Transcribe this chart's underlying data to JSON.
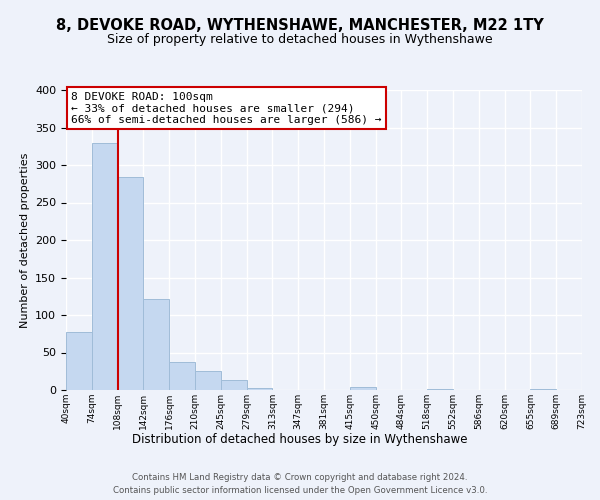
{
  "title": "8, DEVOKE ROAD, WYTHENSHAWE, MANCHESTER, M22 1TY",
  "subtitle": "Size of property relative to detached houses in Wythenshawe",
  "xlabel": "Distribution of detached houses by size in Wythenshawe",
  "ylabel": "Number of detached properties",
  "bar_values": [
    77,
    330,
    284,
    122,
    37,
    25,
    14,
    3,
    0,
    0,
    0,
    4,
    0,
    0,
    1,
    0,
    0,
    0,
    1,
    0
  ],
  "bin_labels": [
    "40sqm",
    "74sqm",
    "108sqm",
    "142sqm",
    "176sqm",
    "210sqm",
    "245sqm",
    "279sqm",
    "313sqm",
    "347sqm",
    "381sqm",
    "415sqm",
    "450sqm",
    "484sqm",
    "518sqm",
    "552sqm",
    "586sqm",
    "620sqm",
    "655sqm",
    "689sqm",
    "723sqm"
  ],
  "bar_color": "#c5d8f0",
  "bar_edge_color": "#a0bcd8",
  "highlight_line_color": "#cc0000",
  "annotation_line1": "8 DEVOKE ROAD: 100sqm",
  "annotation_line2": "← 33% of detached houses are smaller (294)",
  "annotation_line3": "66% of semi-detached houses are larger (586) →",
  "ylim": [
    0,
    400
  ],
  "yticks": [
    0,
    50,
    100,
    150,
    200,
    250,
    300,
    350,
    400
  ],
  "footer_line1": "Contains HM Land Registry data © Crown copyright and database right 2024.",
  "footer_line2": "Contains public sector information licensed under the Open Government Licence v3.0.",
  "background_color": "#eef2fa",
  "grid_color": "#ffffff",
  "title_fontsize": 10.5,
  "subtitle_fontsize": 9
}
